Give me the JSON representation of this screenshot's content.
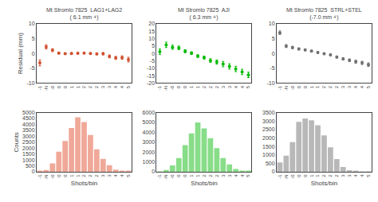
{
  "chart_data": [
    {
      "type": "scatter",
      "title": "Mt Stromlo 7825  LAG1+LAG2",
      "subtitle": "( 6.1 mm +)",
      "categories": [
        "-1",
        "-N",
        "-0",
        "0",
        "0",
        "1",
        "1",
        "2",
        "2",
        "2",
        "3",
        "3",
        "4",
        "4",
        "5"
      ],
      "values": [
        -3.2,
        2.2,
        1.1,
        0.1,
        -0.05,
        0.0,
        0.05,
        0.1,
        0.0,
        -0.15,
        -0.1,
        -1.0,
        -1.5,
        -1.4,
        -2.1
      ],
      "yerr": [
        1.0,
        0.7,
        0.5,
        0.3,
        0.25,
        0.25,
        0.25,
        0.25,
        0.25,
        0.3,
        0.4,
        0.5,
        0.5,
        0.6,
        0.8
      ],
      "color": "#d05030",
      "marker": "circle",
      "ylabel": "Residual (mm)",
      "ylim": [
        -10,
        10
      ],
      "yticks": [
        -10,
        -5,
        0,
        5,
        10
      ],
      "grid": false
    },
    {
      "type": "bar",
      "xlabel": "Shots/bin",
      "ylabel": "Counts",
      "categories": [
        "-1",
        "-N",
        "-0",
        "0",
        "0",
        "1",
        "1",
        "2",
        "2",
        "2",
        "3",
        "3",
        "4",
        "4",
        "5"
      ],
      "values": [
        50,
        150,
        700,
        1700,
        2600,
        3700,
        4600,
        4200,
        3100,
        1900,
        1100,
        550,
        180,
        80,
        30
      ],
      "color": "#f0a898",
      "ylim": [
        0,
        5000
      ],
      "yticks": [
        0,
        500,
        1000,
        1500,
        2000,
        2500,
        3000,
        3500,
        4000,
        4500,
        5000
      ],
      "grid": false
    },
    {
      "type": "scatter",
      "title": "Mt Stromlo 7825  AJI",
      "subtitle": "( 6.3 mm +)",
      "categories": [
        "-1",
        "-N",
        "-0",
        "0",
        "0",
        "1",
        "1",
        "2",
        "2",
        "2",
        "3",
        "3",
        "4",
        "4",
        "5"
      ],
      "values": [
        1.2,
        5.8,
        4.2,
        3.8,
        1.5,
        0.2,
        -1.8,
        -2.8,
        -4.8,
        -5.8,
        -7.2,
        -8.8,
        -10.5,
        -12.5,
        -14.5
      ],
      "yerr": [
        1.8,
        1.8,
        1.4,
        1.2,
        1.0,
        0.9,
        0.9,
        1.0,
        1.2,
        1.4,
        1.8,
        1.8,
        1.8,
        1.8,
        1.8
      ],
      "color": "#00bb00",
      "marker": "circle",
      "ylim": [
        -20,
        20
      ],
      "yticks": [
        -20,
        -15,
        -10,
        -5,
        0,
        5,
        10,
        15,
        20
      ],
      "grid": false
    },
    {
      "type": "bar",
      "xlabel": "Shots/bin",
      "categories": [
        "-1",
        "-N",
        "-0",
        "0",
        "0",
        "1",
        "1",
        "2",
        "2",
        "2",
        "3",
        "3",
        "4",
        "4",
        "5"
      ],
      "values": [
        30,
        180,
        650,
        1400,
        2700,
        3900,
        5000,
        4400,
        3400,
        2400,
        1400,
        750,
        280,
        90,
        40
      ],
      "color": "#88dd88",
      "ylim": [
        0,
        6000
      ],
      "yticks": [
        0,
        1000,
        2000,
        3000,
        4000,
        5000,
        6000
      ],
      "grid": false
    },
    {
      "type": "scatter",
      "title": "Mt Stromlo 7825  STRL+STEL",
      "subtitle": "(-7.0 mm +)",
      "categories": [
        "-1",
        "-N",
        "-0",
        "0",
        "0",
        "1",
        "1",
        "2",
        "2",
        "2",
        "3",
        "3",
        "4",
        "4",
        "5"
      ],
      "values": [
        7.0,
        2.5,
        2.0,
        1.5,
        1.2,
        0.8,
        0.3,
        -0.1,
        -0.5,
        -1.2,
        -1.8,
        -2.3,
        -2.8,
        -3.2,
        -3.8
      ],
      "yerr": [
        0.6,
        0.5,
        0.4,
        0.35,
        0.3,
        0.3,
        0.3,
        0.3,
        0.3,
        0.35,
        0.4,
        0.45,
        0.5,
        0.55,
        0.6
      ],
      "color": "#707070",
      "marker": "circle",
      "ylim": [
        -10,
        10
      ],
      "yticks": [
        -10,
        -5,
        0,
        5,
        10
      ],
      "grid": false
    },
    {
      "type": "bar",
      "xlabel": "Shots/bin",
      "categories": [
        "-1",
        "-N",
        "-0",
        "0",
        "0",
        "1",
        "1",
        "2",
        "2",
        "2",
        "3",
        "3",
        "4",
        "4",
        "5"
      ],
      "values": [
        550,
        950,
        1750,
        2950,
        3150,
        3050,
        2750,
        2150,
        1450,
        750,
        280,
        90,
        40,
        15,
        5
      ],
      "color": "#b8b8b8",
      "ylim": [
        0,
        3500
      ],
      "yticks": [
        0,
        500,
        1000,
        1500,
        2000,
        2500,
        3000,
        3500
      ],
      "grid": false
    }
  ]
}
